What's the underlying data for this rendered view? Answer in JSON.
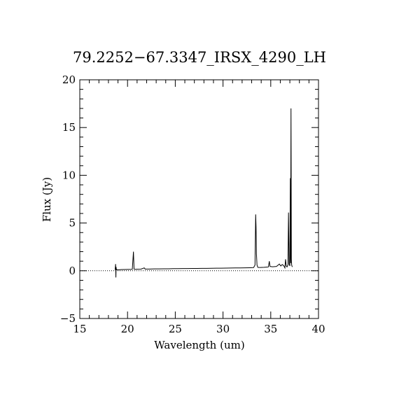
{
  "chart_data": {
    "type": "line",
    "title": "79.2252−67.3347_IRSX_4290_LH",
    "xlabel": "Wavelength (um)",
    "ylabel": "Flux (Jy)",
    "xlim": [
      15,
      40
    ],
    "ylim": [
      -5,
      20
    ],
    "x_major_ticks": [
      15,
      20,
      25,
      30,
      35,
      40
    ],
    "y_major_ticks": [
      -5,
      0,
      5,
      10,
      15,
      20
    ],
    "x_minor_step": 1,
    "y_minor_step": 1,
    "x_tick_labels": [
      "15",
      "20",
      "25",
      "30",
      "35",
      "40"
    ],
    "y_tick_labels": [
      "−5",
      "0",
      "5",
      "10",
      "15",
      "20"
    ],
    "zero_line": {
      "y": 0,
      "style": "dotted"
    },
    "grid": false,
    "legend": "none",
    "line_color": "#000000",
    "series": [
      {
        "x": [
          18.7,
          18.75,
          18.78,
          18.8,
          18.83,
          18.86,
          18.9,
          19.0,
          19.3,
          19.7,
          20.1,
          20.5,
          20.62,
          20.68,
          20.72,
          20.78,
          21.0,
          21.4,
          21.75,
          21.85,
          21.95,
          22.3,
          22.8,
          23.3,
          23.8,
          24.3,
          24.8,
          25.3,
          25.8,
          26.3,
          26.8,
          27.3,
          27.8,
          28.3,
          28.8,
          29.3,
          29.8,
          30.3,
          30.8,
          31.3,
          31.8,
          32.3,
          32.8,
          33.2,
          33.35,
          33.42,
          33.46,
          33.5,
          33.56,
          33.65,
          33.9,
          34.3,
          34.75,
          34.85,
          34.92,
          35.2,
          35.6,
          35.9,
          36.05,
          36.2,
          36.35,
          36.48,
          36.55,
          36.62,
          36.7,
          36.8,
          36.86,
          36.92,
          37.0,
          37.05,
          37.08,
          37.12,
          37.16,
          37.19,
          37.22,
          37.26
        ],
        "y": [
          0.1,
          0.7,
          -0.7,
          0.4,
          0.15,
          0.1,
          0.12,
          0.1,
          0.12,
          0.13,
          0.14,
          0.15,
          2.0,
          0.2,
          0.15,
          0.15,
          0.16,
          0.17,
          0.3,
          0.17,
          0.18,
          0.18,
          0.2,
          0.2,
          0.21,
          0.21,
          0.22,
          0.22,
          0.23,
          0.23,
          0.24,
          0.24,
          0.25,
          0.25,
          0.26,
          0.27,
          0.27,
          0.28,
          0.29,
          0.3,
          0.3,
          0.31,
          0.32,
          0.33,
          0.6,
          5.9,
          4.6,
          1.8,
          0.6,
          0.35,
          0.34,
          0.36,
          0.4,
          1.0,
          0.45,
          0.42,
          0.45,
          0.7,
          0.5,
          0.65,
          0.55,
          0.3,
          1.2,
          0.5,
          0.4,
          0.6,
          6.1,
          0.7,
          0.5,
          9.7,
          0.8,
          17.0,
          1.2,
          0.6,
          0.5,
          0.4
        ]
      }
    ]
  }
}
